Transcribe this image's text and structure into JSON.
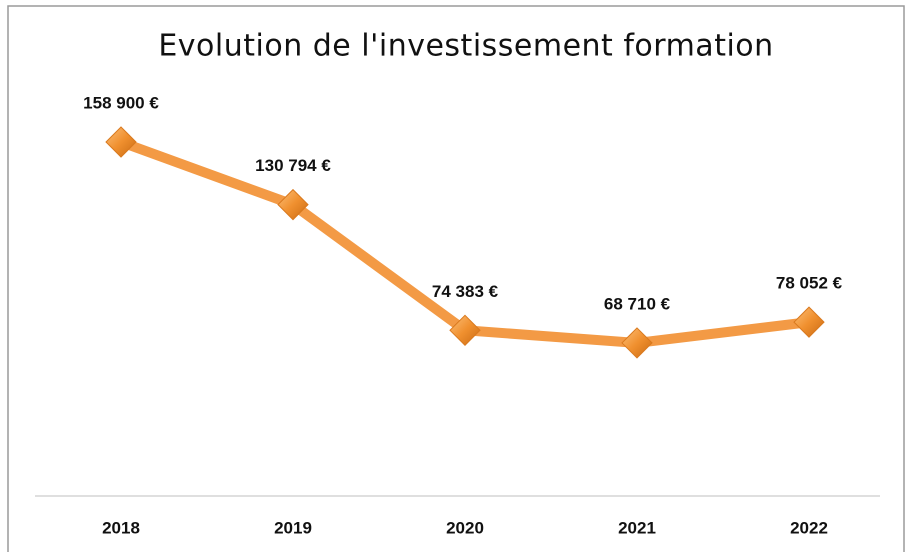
{
  "chart_data": {
    "type": "line",
    "title": "Evolution de l'investissement formation",
    "categories": [
      "2018",
      "2019",
      "2020",
      "2021",
      "2022"
    ],
    "series": [
      {
        "name": "Investissement formation",
        "color": "#f39a45",
        "values": [
          158900,
          130794,
          74383,
          68710,
          78052
        ],
        "value_labels": [
          "158 900 €",
          "130 794 €",
          "74 383 €",
          "68 710 €",
          "78 052 €"
        ]
      }
    ],
    "ylim": [
      0,
      180000
    ]
  }
}
